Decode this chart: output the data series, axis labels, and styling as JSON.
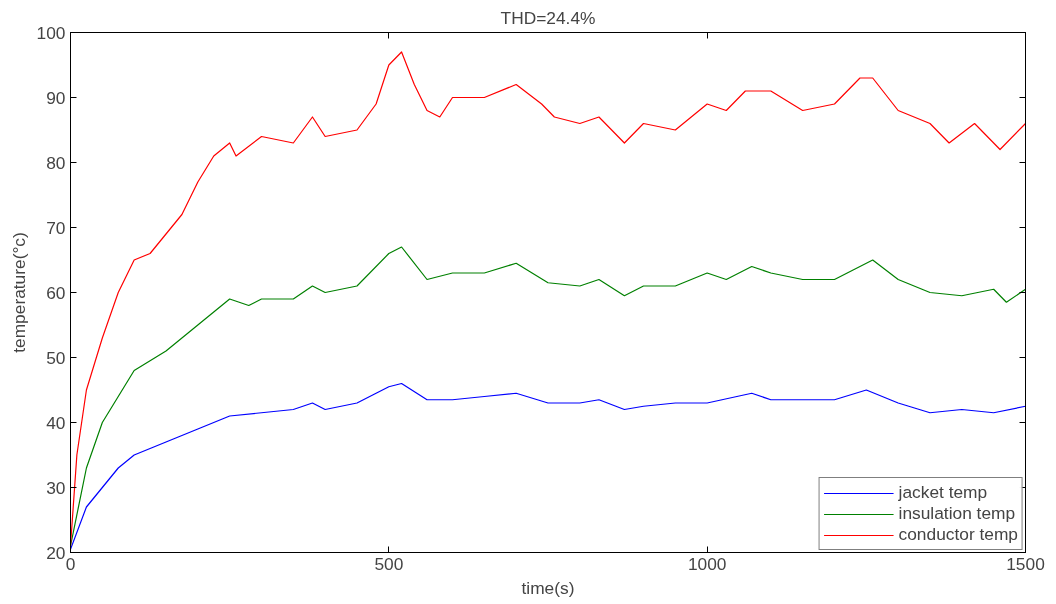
{
  "chart_data": {
    "type": "line",
    "title": "THD=24.4%",
    "xlabel": "time(s)",
    "ylabel": "temperature(°c)",
    "xlim": [
      0,
      1500
    ],
    "ylim": [
      20,
      100
    ],
    "xticks": [
      0,
      500,
      1000,
      1500
    ],
    "yticks": [
      20,
      30,
      40,
      50,
      60,
      70,
      80,
      90,
      100
    ],
    "grid": false,
    "legend": "bottom right",
    "marker": "none",
    "line_style": "solid",
    "series": [
      {
        "name": "jacket temp",
        "color": "#0000ff",
        "x": [
          0,
          25,
          50,
          75,
          100,
          150,
          200,
          250,
          300,
          350,
          380,
          400,
          450,
          500,
          520,
          560,
          600,
          650,
          700,
          750,
          800,
          830,
          870,
          900,
          950,
          1000,
          1070,
          1100,
          1150,
          1200,
          1250,
          1300,
          1350,
          1400,
          1450,
          1500
        ],
        "values": [
          20.5,
          27,
          30,
          33,
          35,
          37,
          39,
          41,
          41.5,
          42,
          43,
          42,
          43,
          45.5,
          46,
          43.5,
          43.5,
          44,
          44.5,
          43,
          43,
          43.5,
          42,
          42.5,
          43,
          43,
          44.5,
          43.5,
          43.5,
          43.5,
          45,
          43,
          41.5,
          42,
          41.5,
          42.5
        ]
      },
      {
        "name": "insulation temp",
        "color": "#008000",
        "x": [
          0,
          25,
          50,
          75,
          100,
          150,
          200,
          250,
          280,
          300,
          350,
          380,
          400,
          450,
          500,
          520,
          560,
          600,
          650,
          700,
          750,
          800,
          830,
          870,
          900,
          950,
          1000,
          1030,
          1070,
          1100,
          1150,
          1200,
          1260,
          1300,
          1350,
          1400,
          1450,
          1470,
          1500
        ],
        "values": [
          21,
          33,
          40,
          44,
          48,
          51,
          55,
          59,
          58,
          59,
          59,
          61,
          60,
          61,
          66,
          67,
          62,
          63,
          63,
          64.5,
          61.5,
          61,
          62,
          59.5,
          61,
          61,
          63,
          62,
          64,
          63,
          62,
          62,
          65,
          62,
          60,
          59.5,
          60.5,
          58.5,
          60.5
        ]
      },
      {
        "name": "conductor temp",
        "color": "#ff0000",
        "x": [
          0,
          10,
          25,
          50,
          75,
          100,
          125,
          150,
          175,
          200,
          225,
          250,
          260,
          300,
          350,
          380,
          400,
          450,
          480,
          500,
          520,
          540,
          560,
          580,
          600,
          650,
          700,
          740,
          760,
          800,
          830,
          870,
          900,
          950,
          1000,
          1030,
          1060,
          1100,
          1150,
          1200,
          1240,
          1260,
          1300,
          1350,
          1380,
          1420,
          1460,
          1500
        ],
        "values": [
          21,
          35,
          45,
          53,
          60,
          65,
          66,
          69,
          72,
          77,
          81,
          83,
          81,
          84,
          83,
          87,
          84,
          85,
          89,
          95,
          97,
          92,
          88,
          87,
          90,
          90,
          92,
          89,
          87,
          86,
          87,
          83,
          86,
          85,
          89,
          88,
          91,
          91,
          88,
          89,
          93,
          93,
          88,
          86,
          83,
          86,
          82,
          86
        ]
      }
    ]
  }
}
